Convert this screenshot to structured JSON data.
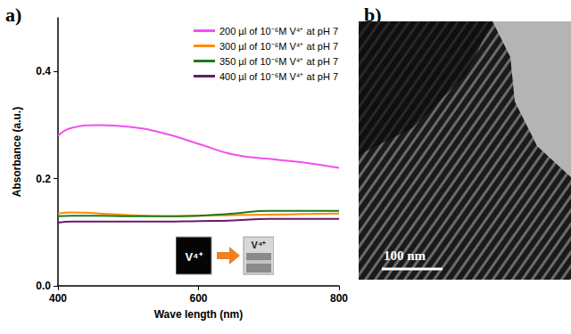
{
  "chart_data": {
    "type": "line",
    "x_label": "Wave length (nm)",
    "y_label": "Absorbance (a.u.)",
    "xlim": [
      400,
      800
    ],
    "xticks": [
      400,
      600,
      800
    ],
    "ylim": [
      0,
      0.5
    ],
    "yticks": [
      {
        "value": 0,
        "label": "0.0"
      },
      {
        "value": 0.2,
        "label": "0.2"
      },
      {
        "value": 0.4,
        "label": "0.4"
      }
    ],
    "grid": false,
    "legend": "upper right",
    "line_style": "solid",
    "x": [
      400,
      420,
      460,
      500,
      550,
      600,
      650,
      700,
      750,
      800
    ],
    "series": [
      {
        "name": "200 µl of 10⁻⁶M V⁴⁺ at pH 7",
        "color": "#f050f0",
        "values": [
          0.28,
          0.295,
          0.3,
          0.297,
          0.285,
          0.265,
          0.245,
          0.237,
          0.23,
          0.22
        ]
      },
      {
        "name": "300 µl of 10⁻⁶M V⁴⁺ at pH 7",
        "color": "#ff8c00",
        "values": [
          0.135,
          0.137,
          0.135,
          0.132,
          0.13,
          0.131,
          0.132,
          0.133,
          0.134,
          0.135
        ]
      },
      {
        "name": "350 µl of 10⁻⁶M V⁴⁺ at pH 7",
        "color": "#1e7a1e",
        "values": [
          0.13,
          0.131,
          0.131,
          0.13,
          0.13,
          0.131,
          0.135,
          0.14,
          0.14,
          0.14
        ]
      },
      {
        "name": "400 µl of 10⁻⁶M V⁴⁺ at pH 7",
        "color": "#6a1a6a",
        "values": [
          0.118,
          0.12,
          0.12,
          0.12,
          0.12,
          0.121,
          0.122,
          0.125,
          0.125,
          0.125
        ]
      }
    ]
  },
  "panel_labels": [
    "a)",
    "b)"
  ],
  "inset": {
    "before": "V⁴⁺",
    "after": "V⁴⁺"
  },
  "micrograph": {
    "scale_bar": "100 nm"
  }
}
